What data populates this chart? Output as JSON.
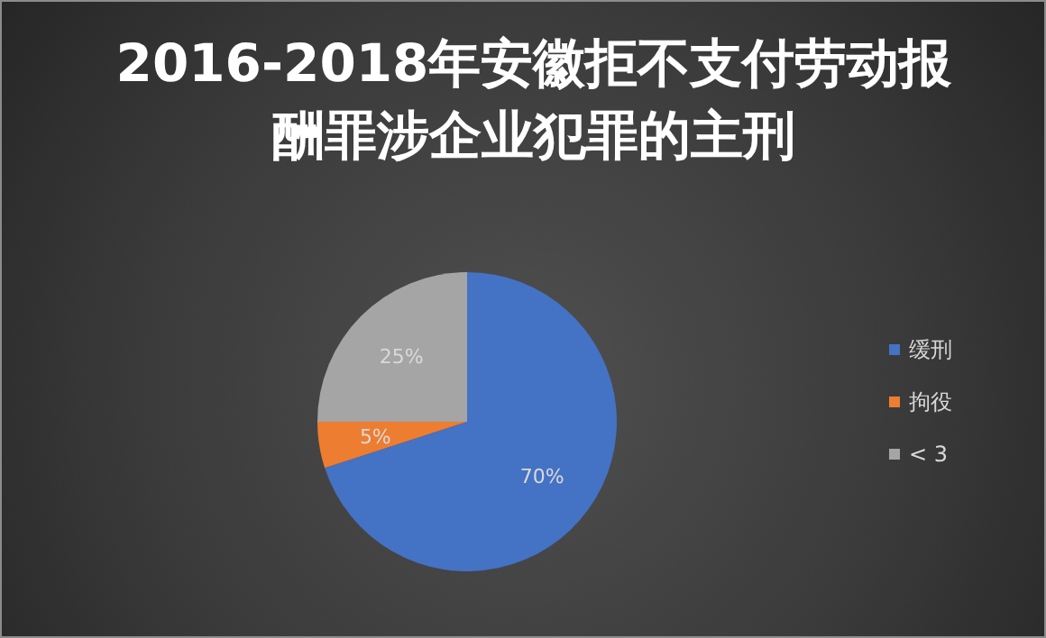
{
  "chart_data": {
    "type": "pie",
    "title": "2016-2018年安徽拒不支付劳动报酬罪涉企业犯罪的主刑",
    "categories": [
      "缓刑",
      "拘役",
      "< 3"
    ],
    "values": [
      70,
      5,
      25
    ],
    "value_labels": [
      "70%",
      "5%",
      "25%"
    ],
    "colors": [
      "#4472c4",
      "#ed7d31",
      "#a5a5a5"
    ],
    "legend": "right"
  }
}
